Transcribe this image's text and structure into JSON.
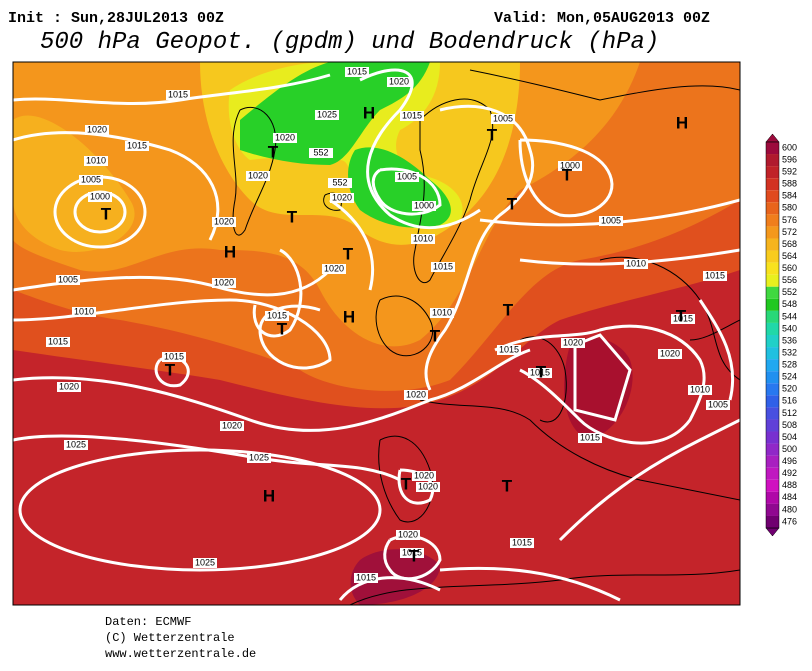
{
  "header": {
    "init": "Init : Sun,28JUL2013 00Z",
    "valid": "Valid: Mon,05AUG2013 00Z",
    "title": "500 hPa Geopot. (gpdm) und Bodendruck (hPa)"
  },
  "colorbar": {
    "levels": [
      600,
      596,
      592,
      588,
      584,
      580,
      576,
      572,
      568,
      564,
      560,
      556,
      552,
      548,
      544,
      540,
      536,
      532,
      528,
      524,
      520,
      516,
      512,
      508,
      504,
      500,
      496,
      492,
      488,
      484,
      480,
      476
    ],
    "colors": [
      "#9c0a3c",
      "#b01a2e",
      "#c02228",
      "#d23222",
      "#e04a1e",
      "#e8641c",
      "#f07e1c",
      "#f4981c",
      "#f6b41e",
      "#f8cc1e",
      "#f8e21e",
      "#e8f01e",
      "#40d840",
      "#20c820",
      "#28d878",
      "#20d8a8",
      "#20d0c8",
      "#20c0e0",
      "#20a8f0",
      "#2090f0",
      "#2878f0",
      "#3060e8",
      "#4850e0",
      "#6040d8",
      "#7830d0",
      "#9028c8",
      "#a820c0",
      "#c018c0",
      "#d010c0",
      "#b008a8",
      "#900890",
      "#700070"
    ]
  },
  "map": {
    "labels": [
      "1015",
      "1020",
      "1015",
      "1025",
      "1015",
      "1005",
      "1020",
      "1015",
      "1020",
      "1010",
      "1000",
      "1005",
      "1020",
      "1005",
      "1000",
      "1020",
      "1000",
      "1020",
      "1010",
      "1005",
      "1020",
      "1015",
      "1010",
      "1005",
      "1020",
      "1015",
      "1010",
      "1015",
      "1010",
      "1015",
      "1015",
      "1015",
      "1020",
      "1020",
      "1015",
      "1015",
      "1020",
      "1020",
      "1010",
      "1005",
      "1020",
      "1015",
      "1025",
      "1025",
      "1020",
      "1020",
      "1015",
      "1020",
      "1015",
      "1025",
      "1015",
      "552",
      "552"
    ],
    "centers": [
      "H",
      "T",
      "H",
      "T",
      "T",
      "T",
      "T",
      "T",
      "H",
      "T",
      "H",
      "T",
      "T",
      "T",
      "T",
      "T",
      "T",
      "H",
      "T",
      "T",
      "T"
    ]
  },
  "footer": {
    "source": "Daten: ECMWF",
    "copyright": "(C) Wetterzentrale",
    "url": "www.wetterzentrale.de"
  }
}
